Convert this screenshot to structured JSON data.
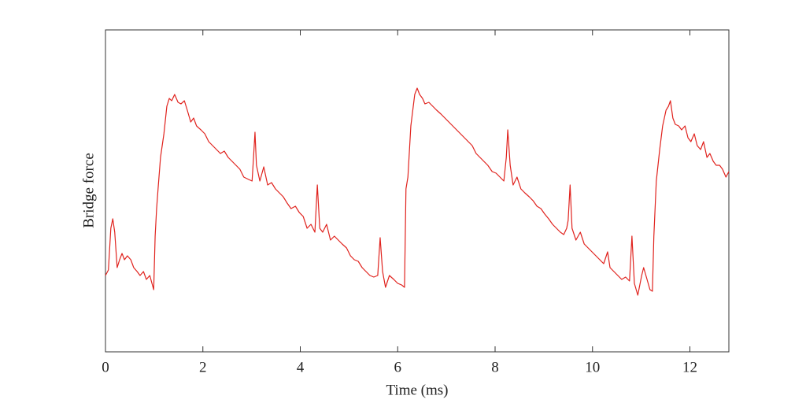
{
  "chart_data": {
    "type": "line",
    "xlabel": "Time (ms)",
    "ylabel": "Bridge force",
    "color": "#e0231e",
    "xlim": [
      0,
      12.8
    ],
    "xticks": [
      0,
      2,
      4,
      6,
      8,
      10,
      12
    ],
    "ylim": [
      0,
      409
    ],
    "yticks": [],
    "x": [
      0,
      0.06,
      0.11,
      0.15,
      0.19,
      0.24,
      0.29,
      0.34,
      0.39,
      0.45,
      0.52,
      0.58,
      0.65,
      0.71,
      0.78,
      0.84,
      0.91,
      0.99,
      1.02,
      1.05,
      1.08,
      1.13,
      1.2,
      1.26,
      1.31,
      1.36,
      1.42,
      1.49,
      1.55,
      1.62,
      1.68,
      1.75,
      1.81,
      1.87,
      1.96,
      2.04,
      2.12,
      2.2,
      2.28,
      2.36,
      2.44,
      2.52,
      2.6,
      2.68,
      2.76,
      2.84,
      2.94,
      3.01,
      3.04,
      3.07,
      3.1,
      3.17,
      3.25,
      3.33,
      3.41,
      3.49,
      3.57,
      3.65,
      3.73,
      3.81,
      3.9,
      3.98,
      4.06,
      4.14,
      4.22,
      4.3,
      4.35,
      4.4,
      4.46,
      4.54,
      4.62,
      4.7,
      4.78,
      4.86,
      4.95,
      5.03,
      5.11,
      5.19,
      5.27,
      5.35,
      5.43,
      5.51,
      5.59,
      5.64,
      5.69,
      5.75,
      5.83,
      5.92,
      6.0,
      6.08,
      6.14,
      6.17,
      6.21,
      6.27,
      6.35,
      6.4,
      6.45,
      6.51,
      6.56,
      6.64,
      6.72,
      6.8,
      6.89,
      6.97,
      7.05,
      7.13,
      7.21,
      7.29,
      7.37,
      7.45,
      7.53,
      7.61,
      7.69,
      7.77,
      7.85,
      7.94,
      8.02,
      8.1,
      8.18,
      8.23,
      8.26,
      8.31,
      8.37,
      8.45,
      8.53,
      8.61,
      8.7,
      8.78,
      8.86,
      8.94,
      9.02,
      9.1,
      9.18,
      9.26,
      9.34,
      9.41,
      9.47,
      9.5,
      9.54,
      9.58,
      9.66,
      9.75,
      9.83,
      9.91,
      9.99,
      10.07,
      10.15,
      10.23,
      10.31,
      10.36,
      10.44,
      10.52,
      10.6,
      10.68,
      10.76,
      10.81,
      10.86,
      10.93,
      11.01,
      11.05,
      11.12,
      11.18,
      11.23,
      11.26,
      11.31,
      11.38,
      11.44,
      11.51,
      11.56,
      11.6,
      11.65,
      11.7,
      11.77,
      11.83,
      11.9,
      11.96,
      12.02,
      12.09,
      12.15,
      12.22,
      12.28,
      12.35,
      12.41,
      12.48,
      12.54,
      12.61,
      12.67,
      12.74,
      12.8
    ],
    "values": [
      97,
      104,
      157,
      169,
      152,
      107,
      117,
      125,
      117,
      122,
      117,
      107,
      102,
      97,
      102,
      92,
      97,
      79,
      147,
      182,
      207,
      247,
      277,
      312,
      322,
      319,
      327,
      317,
      315,
      319,
      307,
      292,
      297,
      287,
      282,
      277,
      267,
      262,
      257,
      252,
      255,
      247,
      242,
      237,
      232,
      222,
      219,
      217,
      247,
      279,
      237,
      217,
      235,
      212,
      215,
      207,
      202,
      197,
      189,
      182,
      185,
      177,
      172,
      157,
      162,
      152,
      212,
      157,
      152,
      162,
      142,
      147,
      142,
      137,
      132,
      122,
      117,
      115,
      107,
      102,
      97,
      95,
      97,
      145,
      102,
      82,
      97,
      92,
      87,
      85,
      82,
      207,
      222,
      287,
      327,
      335,
      327,
      322,
      315,
      317,
      312,
      307,
      302,
      297,
      292,
      287,
      282,
      277,
      272,
      267,
      262,
      252,
      247,
      242,
      237,
      229,
      227,
      222,
      217,
      247,
      282,
      237,
      212,
      222,
      207,
      202,
      197,
      192,
      185,
      182,
      175,
      169,
      162,
      157,
      152,
      149,
      157,
      167,
      212,
      157,
      142,
      152,
      137,
      132,
      127,
      122,
      117,
      112,
      127,
      107,
      102,
      97,
      92,
      95,
      90,
      147,
      87,
      72,
      97,
      107,
      92,
      79,
      77,
      147,
      217,
      257,
      287,
      307,
      312,
      319,
      297,
      289,
      287,
      282,
      287,
      272,
      267,
      277,
      262,
      257,
      267,
      247,
      252,
      242,
      237,
      237,
      232,
      222,
      229
    ]
  }
}
